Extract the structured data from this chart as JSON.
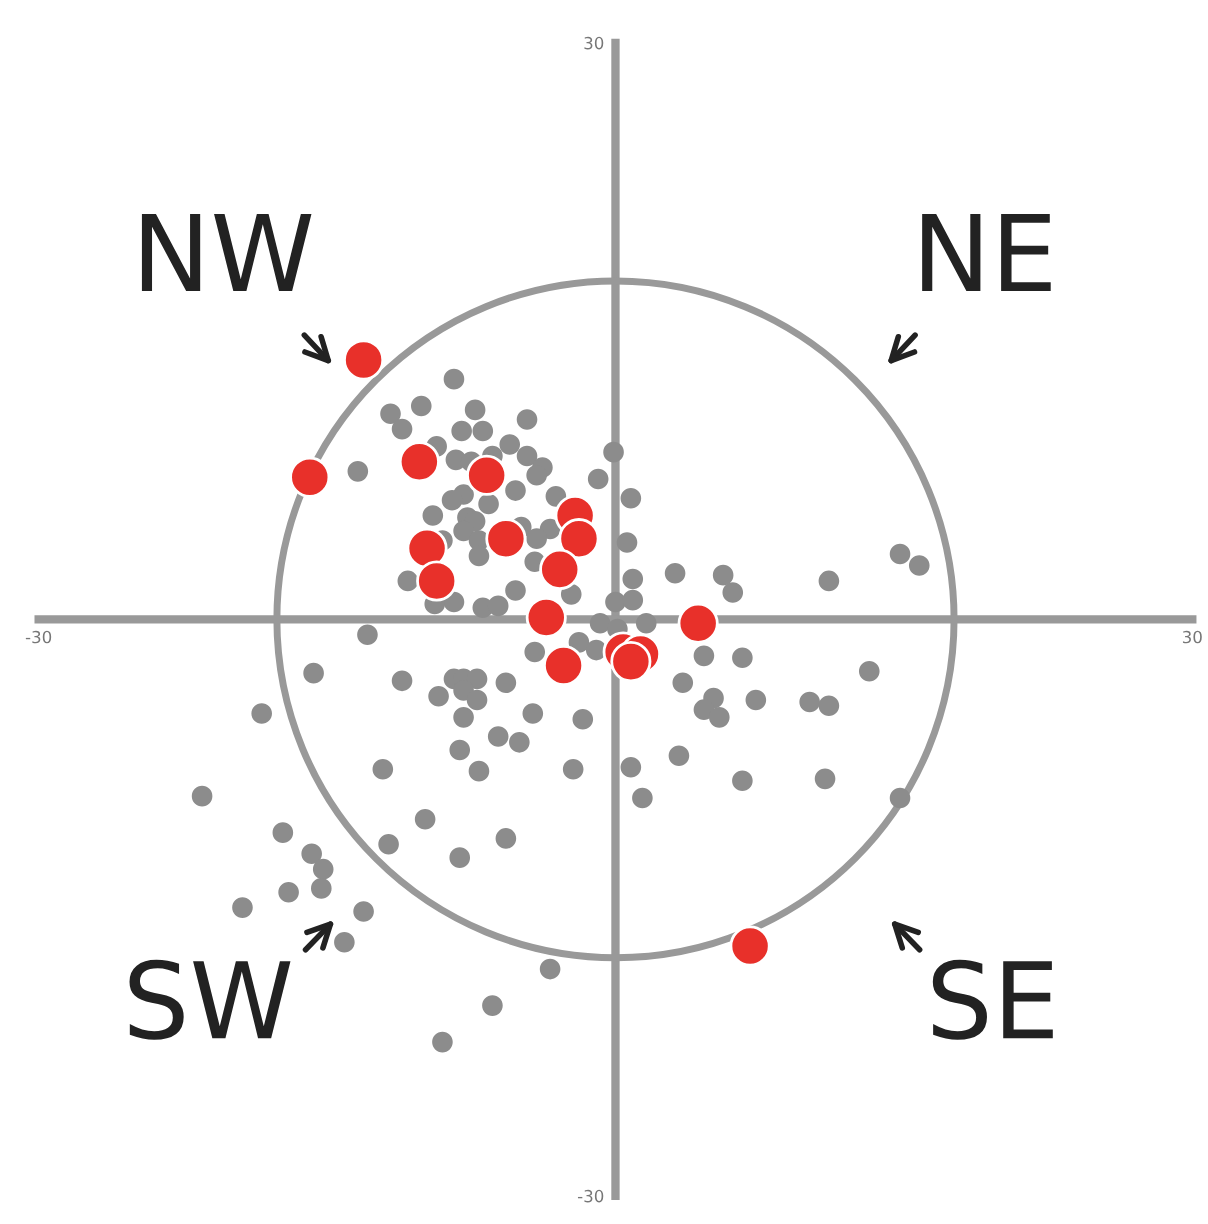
{
  "chart_data": {
    "type": "scatter",
    "xlim": [
      -30,
      30
    ],
    "ylim": [
      -30,
      30
    ],
    "xticks": [
      -30,
      30
    ],
    "yticks": [
      -30,
      30
    ],
    "grid": false,
    "legend": false,
    "marker": "circle",
    "annotations": [
      "NW",
      "NE",
      "SW",
      "SE"
    ],
    "series": [
      {
        "color": "#8c8c8c",
        "x": [
          -8.4,
          -11.7,
          -10.1,
          -11.1,
          -7.3,
          -8.0,
          -6.9,
          -4.6,
          -5.5,
          -9.3,
          -8.3,
          -7.5,
          -6.4,
          -4.6,
          -3.8,
          -4.1,
          -13.4,
          -0.1,
          -0.9,
          0.8,
          -5.2,
          -3.1,
          -7.9,
          -8.5,
          -9.5,
          -7.7,
          -7.3,
          -6.6,
          -7.9,
          -4.9,
          -3.4,
          -4.1,
          -7.1,
          -7.1,
          -9.0,
          0.6,
          -4.2,
          -10.8,
          -5.2,
          -6.9,
          -6.1,
          -8.4,
          -9.4,
          -2.3,
          0.9,
          0.0,
          0.9,
          3.1,
          5.6,
          6.1,
          11.1,
          14.8,
          15.8,
          -0.8,
          0.1,
          1.6,
          -12.9,
          -4.2,
          -1.9,
          -1.0,
          4.6,
          6.6,
          -15.7,
          -11.1,
          -8.4,
          -7.9,
          -7.2,
          -5.7,
          -7.9,
          -9.2,
          -7.2,
          3.5,
          13.2,
          -18.4,
          -7.9,
          -4.3,
          -1.7,
          5.1,
          4.6,
          5.4,
          7.3,
          10.1,
          11.1,
          -6.1,
          -5.0,
          -8.1,
          3.3,
          -12.1,
          -7.1,
          -2.2,
          0.8,
          6.6,
          10.9,
          -21.5,
          1.4,
          14.8,
          -9.9,
          -17.3,
          -5.7,
          -11.8,
          -8.1,
          -15.8,
          -15.2,
          -15.3,
          -17.0,
          -19.4,
          -13.1,
          -14.1,
          -3.4,
          -6.4,
          -9.0
        ],
        "values": [
          12.5,
          10.7,
          11.1,
          9.9,
          10.9,
          9.8,
          9.8,
          10.4,
          9.1,
          9.0,
          8.3,
          8.2,
          8.5,
          8.5,
          7.9,
          7.5,
          7.7,
          8.7,
          7.3,
          6.3,
          6.7,
          6.4,
          6.5,
          6.2,
          5.4,
          5.3,
          5.1,
          6.0,
          4.6,
          4.8,
          4.7,
          4.2,
          4.1,
          3.3,
          4.1,
          4.0,
          3.0,
          2.0,
          1.5,
          0.6,
          0.7,
          0.9,
          0.8,
          1.3,
          2.1,
          0.9,
          1.0,
          2.4,
          2.3,
          1.4,
          2.0,
          3.4,
          2.8,
          -0.2,
          -0.5,
          -0.2,
          -0.8,
          -1.7,
          -1.2,
          -1.6,
          -1.9,
          -2.0,
          -2.8,
          -3.2,
          -3.1,
          -3.1,
          -3.1,
          -3.3,
          -3.7,
          -4.0,
          -4.2,
          -3.3,
          -2.7,
          -4.9,
          -5.1,
          -4.9,
          -5.2,
          -4.1,
          -4.7,
          -5.1,
          -4.2,
          -4.3,
          -4.5,
          -6.1,
          -6.4,
          -6.8,
          -7.1,
          -7.8,
          -7.9,
          -7.8,
          -7.7,
          -8.4,
          -8.3,
          -9.2,
          -9.3,
          -9.3,
          -10.4,
          -11.1,
          -11.4,
          -11.7,
          -12.4,
          -12.2,
          -13.0,
          -14.0,
          -14.2,
          -15.0,
          -15.2,
          -16.8,
          -18.2,
          -20.1,
          -22.0
        ]
      },
      {
        "color": "#e8302a",
        "x": [
          -13.1,
          -15.9,
          -10.2,
          -6.7,
          -2.1,
          -1.9,
          -5.7,
          -9.8,
          -9.3,
          -2.9,
          -3.6,
          4.3,
          0.4,
          1.3,
          0.8,
          -2.7,
          7.0
        ],
        "values": [
          13.5,
          7.4,
          8.2,
          7.5,
          5.4,
          4.2,
          4.2,
          3.7,
          2.0,
          2.6,
          0.1,
          -0.2,
          -1.7,
          -1.8,
          -2.2,
          -2.4,
          -17.0
        ]
      }
    ]
  }
}
